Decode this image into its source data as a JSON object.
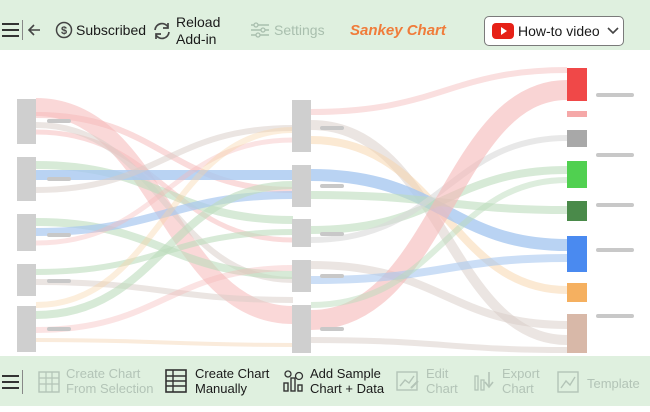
{
  "toolbar": {
    "subscribed_label": "Subscribed",
    "reload_label_line1": "Reload",
    "reload_label_line2": "Add-in",
    "settings_label": "Settings",
    "title": "Sankey Chart",
    "howto_label": "How-to video"
  },
  "bottom": {
    "create_selection_line1": "Create Chart",
    "create_selection_line2": "From Selection",
    "create_manual_line1": "Create Chart",
    "create_manual_line2": "Manually",
    "sample_line1": "Add Sample",
    "sample_line2": "Chart + Data",
    "edit_line1": "Edit",
    "edit_line2": "Chart",
    "export_line1": "Export",
    "export_line2": "Chart",
    "template_label": "Template"
  },
  "colors": {
    "bar_bg": "#dff0df",
    "title": "#f07c3a",
    "youtube": "#e62117"
  },
  "icons": [
    "hamburger-icon",
    "back-arrow-icon",
    "dollar-icon",
    "reload-icon",
    "settings-sliders-icon",
    "youtube-icon",
    "chevron-down-icon",
    "table-icon",
    "sample-chart-icon",
    "edit-chart-icon",
    "export-chart-icon",
    "template-icon"
  ]
}
